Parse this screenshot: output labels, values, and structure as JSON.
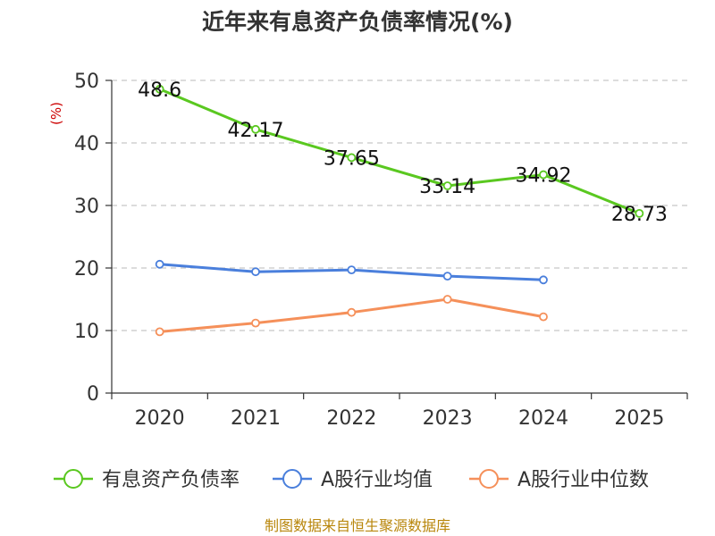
{
  "chart_data": {
    "type": "line",
    "title": "近年来有息资产负债率情况(%)",
    "ylabel": "(%)",
    "xlabel": "",
    "categories": [
      "2020",
      "2021",
      "2022",
      "2023",
      "2024",
      "2025"
    ],
    "ylim": [
      0,
      50
    ],
    "yticks": [
      0,
      10,
      20,
      30,
      40,
      50
    ],
    "grid": true,
    "legend_position": "bottom",
    "series": [
      {
        "name": "有息资产负债率",
        "color": "#5ac820",
        "values": [
          48.6,
          42.17,
          37.65,
          33.14,
          34.92,
          28.73
        ],
        "labels": [
          "48.6",
          "42.17",
          "37.65",
          "33.14",
          "34.92",
          "28.73"
        ]
      },
      {
        "name": "A股行业均值",
        "color": "#4a7fdc",
        "values": [
          20.6,
          19.4,
          19.7,
          18.7,
          18.1,
          null
        ]
      },
      {
        "name": "A股行业中位数",
        "color": "#f5905a",
        "values": [
          9.8,
          11.2,
          12.9,
          15.0,
          12.2,
          null
        ]
      }
    ]
  },
  "footer": {
    "source": "制图数据来自恒生聚源数据库"
  }
}
